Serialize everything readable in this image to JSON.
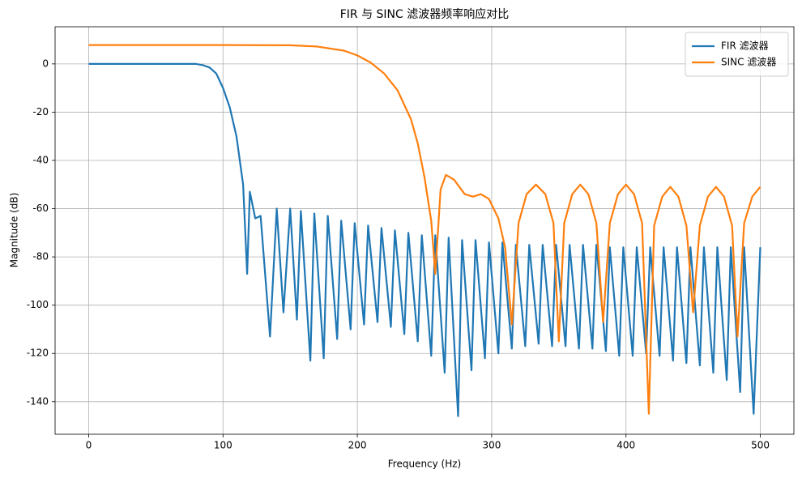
{
  "chart_data": {
    "type": "line",
    "title": "FIR 与 SINC 滤波器频率响应对比",
    "xlabel": "Frequency (Hz)",
    "ylabel": "Magnitude (dB)",
    "xlim": [
      -25,
      525
    ],
    "xticks": [
      0,
      100,
      200,
      300,
      400,
      500
    ],
    "ylim": [
      -153.5,
      15.4
    ],
    "yticks": [
      -140,
      -120,
      -100,
      -80,
      -60,
      -40,
      -20,
      0
    ],
    "grid": true,
    "legend": "upper right",
    "series": [
      {
        "name": "FIR 滤波器",
        "color": "#1f77b4",
        "x": [
          0,
          80,
          85,
          90,
          95,
          100,
          105,
          110,
          115,
          118,
          120,
          124,
          128,
          135,
          140,
          145,
          150,
          155,
          158,
          165,
          168,
          175,
          178,
          185,
          188,
          195,
          198,
          205,
          208,
          215,
          218,
          225,
          228,
          235,
          238,
          245,
          248,
          255,
          258,
          265,
          268,
          275,
          278,
          285,
          288,
          295,
          298,
          305,
          308,
          315,
          318,
          325,
          328,
          335,
          338,
          345,
          348,
          355,
          358,
          365,
          368,
          375,
          378,
          385,
          388,
          395,
          398,
          405,
          408,
          415,
          418,
          425,
          428,
          435,
          438,
          445,
          448,
          455,
          458,
          465,
          468,
          475,
          478,
          485,
          488,
          495,
          500
        ],
        "values": [
          0,
          0,
          -0.5,
          -1.5,
          -4,
          -10,
          -18,
          -30,
          -50,
          -87,
          -53,
          -64,
          -63,
          -113,
          -60,
          -103,
          -60,
          -106,
          -61,
          -123,
          -62,
          -122,
          -63,
          -114,
          -65,
          -110,
          -66,
          -108,
          -67,
          -107,
          -68,
          -109,
          -69,
          -112,
          -70,
          -115,
          -71,
          -121,
          -71,
          -128,
          -72,
          -146,
          -73,
          -127,
          -73,
          -122,
          -74,
          -120,
          -74,
          -118,
          -75,
          -117,
          -75,
          -116,
          -75,
          -117,
          -75,
          -117,
          -75,
          -118,
          -75,
          -118,
          -75,
          -119,
          -76,
          -121,
          -76,
          -121,
          -76,
          -120,
          -76,
          -121,
          -76,
          -123,
          -76,
          -124,
          -76,
          -125,
          -76,
          -128,
          -76,
          -131,
          -76,
          -136,
          -76,
          -145,
          -76
        ]
      },
      {
        "name": "SINC 滤波器",
        "color": "#ff7f0e",
        "x": [
          0,
          100,
          150,
          170,
          190,
          200,
          210,
          220,
          230,
          240,
          245,
          250,
          255,
          258,
          262,
          266,
          272,
          280,
          286,
          292,
          298,
          305,
          310,
          315,
          320,
          326,
          333,
          340,
          346,
          350,
          354,
          360,
          366,
          372,
          378,
          383,
          388,
          394,
          400,
          406,
          412,
          417,
          421,
          427,
          433,
          439,
          445,
          450,
          455,
          461,
          467,
          473,
          479,
          483,
          488,
          494,
          500
        ],
        "values": [
          7.8,
          7.8,
          7.7,
          7.2,
          5.5,
          3.5,
          0.5,
          -4,
          -11,
          -23,
          -33,
          -47,
          -65,
          -87,
          -52,
          -46,
          -48,
          -54,
          -55,
          -54,
          -56,
          -64,
          -76,
          -108,
          -66,
          -54,
          -50,
          -54,
          -66,
          -115,
          -66,
          -54,
          -50,
          -54,
          -66,
          -107,
          -66,
          -54,
          -50,
          -54,
          -66,
          -145,
          -67,
          -55,
          -51,
          -55,
          -67,
          -103,
          -67,
          -55,
          -51,
          -55,
          -67,
          -113,
          -66,
          -55,
          -51
        ]
      }
    ]
  }
}
